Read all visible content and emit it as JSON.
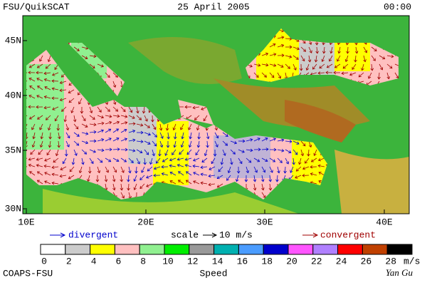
{
  "header": {
    "left": "FSU/QuikSCAT",
    "date": "25 April 2005",
    "time": "00:00"
  },
  "map": {
    "lat_labels": [
      "45N",
      "40N",
      "35N",
      "30N"
    ],
    "lon_labels": [
      "10E",
      "20E",
      "30E",
      "40E"
    ]
  },
  "legend": {
    "divergent": "divergent",
    "scale": "scale",
    "scale_value": "10 m/s",
    "convergent": "convergent"
  },
  "colorbar": {
    "labels": [
      0,
      2,
      4,
      6,
      8,
      10,
      12,
      14,
      16,
      18,
      20,
      22,
      24,
      26,
      28
    ],
    "unit": "m/s",
    "title": "Speed",
    "colors": [
      "#ffffff",
      "#cccccc",
      "#ffff00",
      "#ffc0c0",
      "#90f090",
      "#00ee00",
      "#999999",
      "#00b0b0",
      "#4a9cff",
      "#0000cc",
      "#ff55ff",
      "#b080ff",
      "#ff0000",
      "#c04000",
      "#000000"
    ]
  },
  "footer": {
    "left": "COAPS-FSU",
    "right": "Yan Gu"
  }
}
